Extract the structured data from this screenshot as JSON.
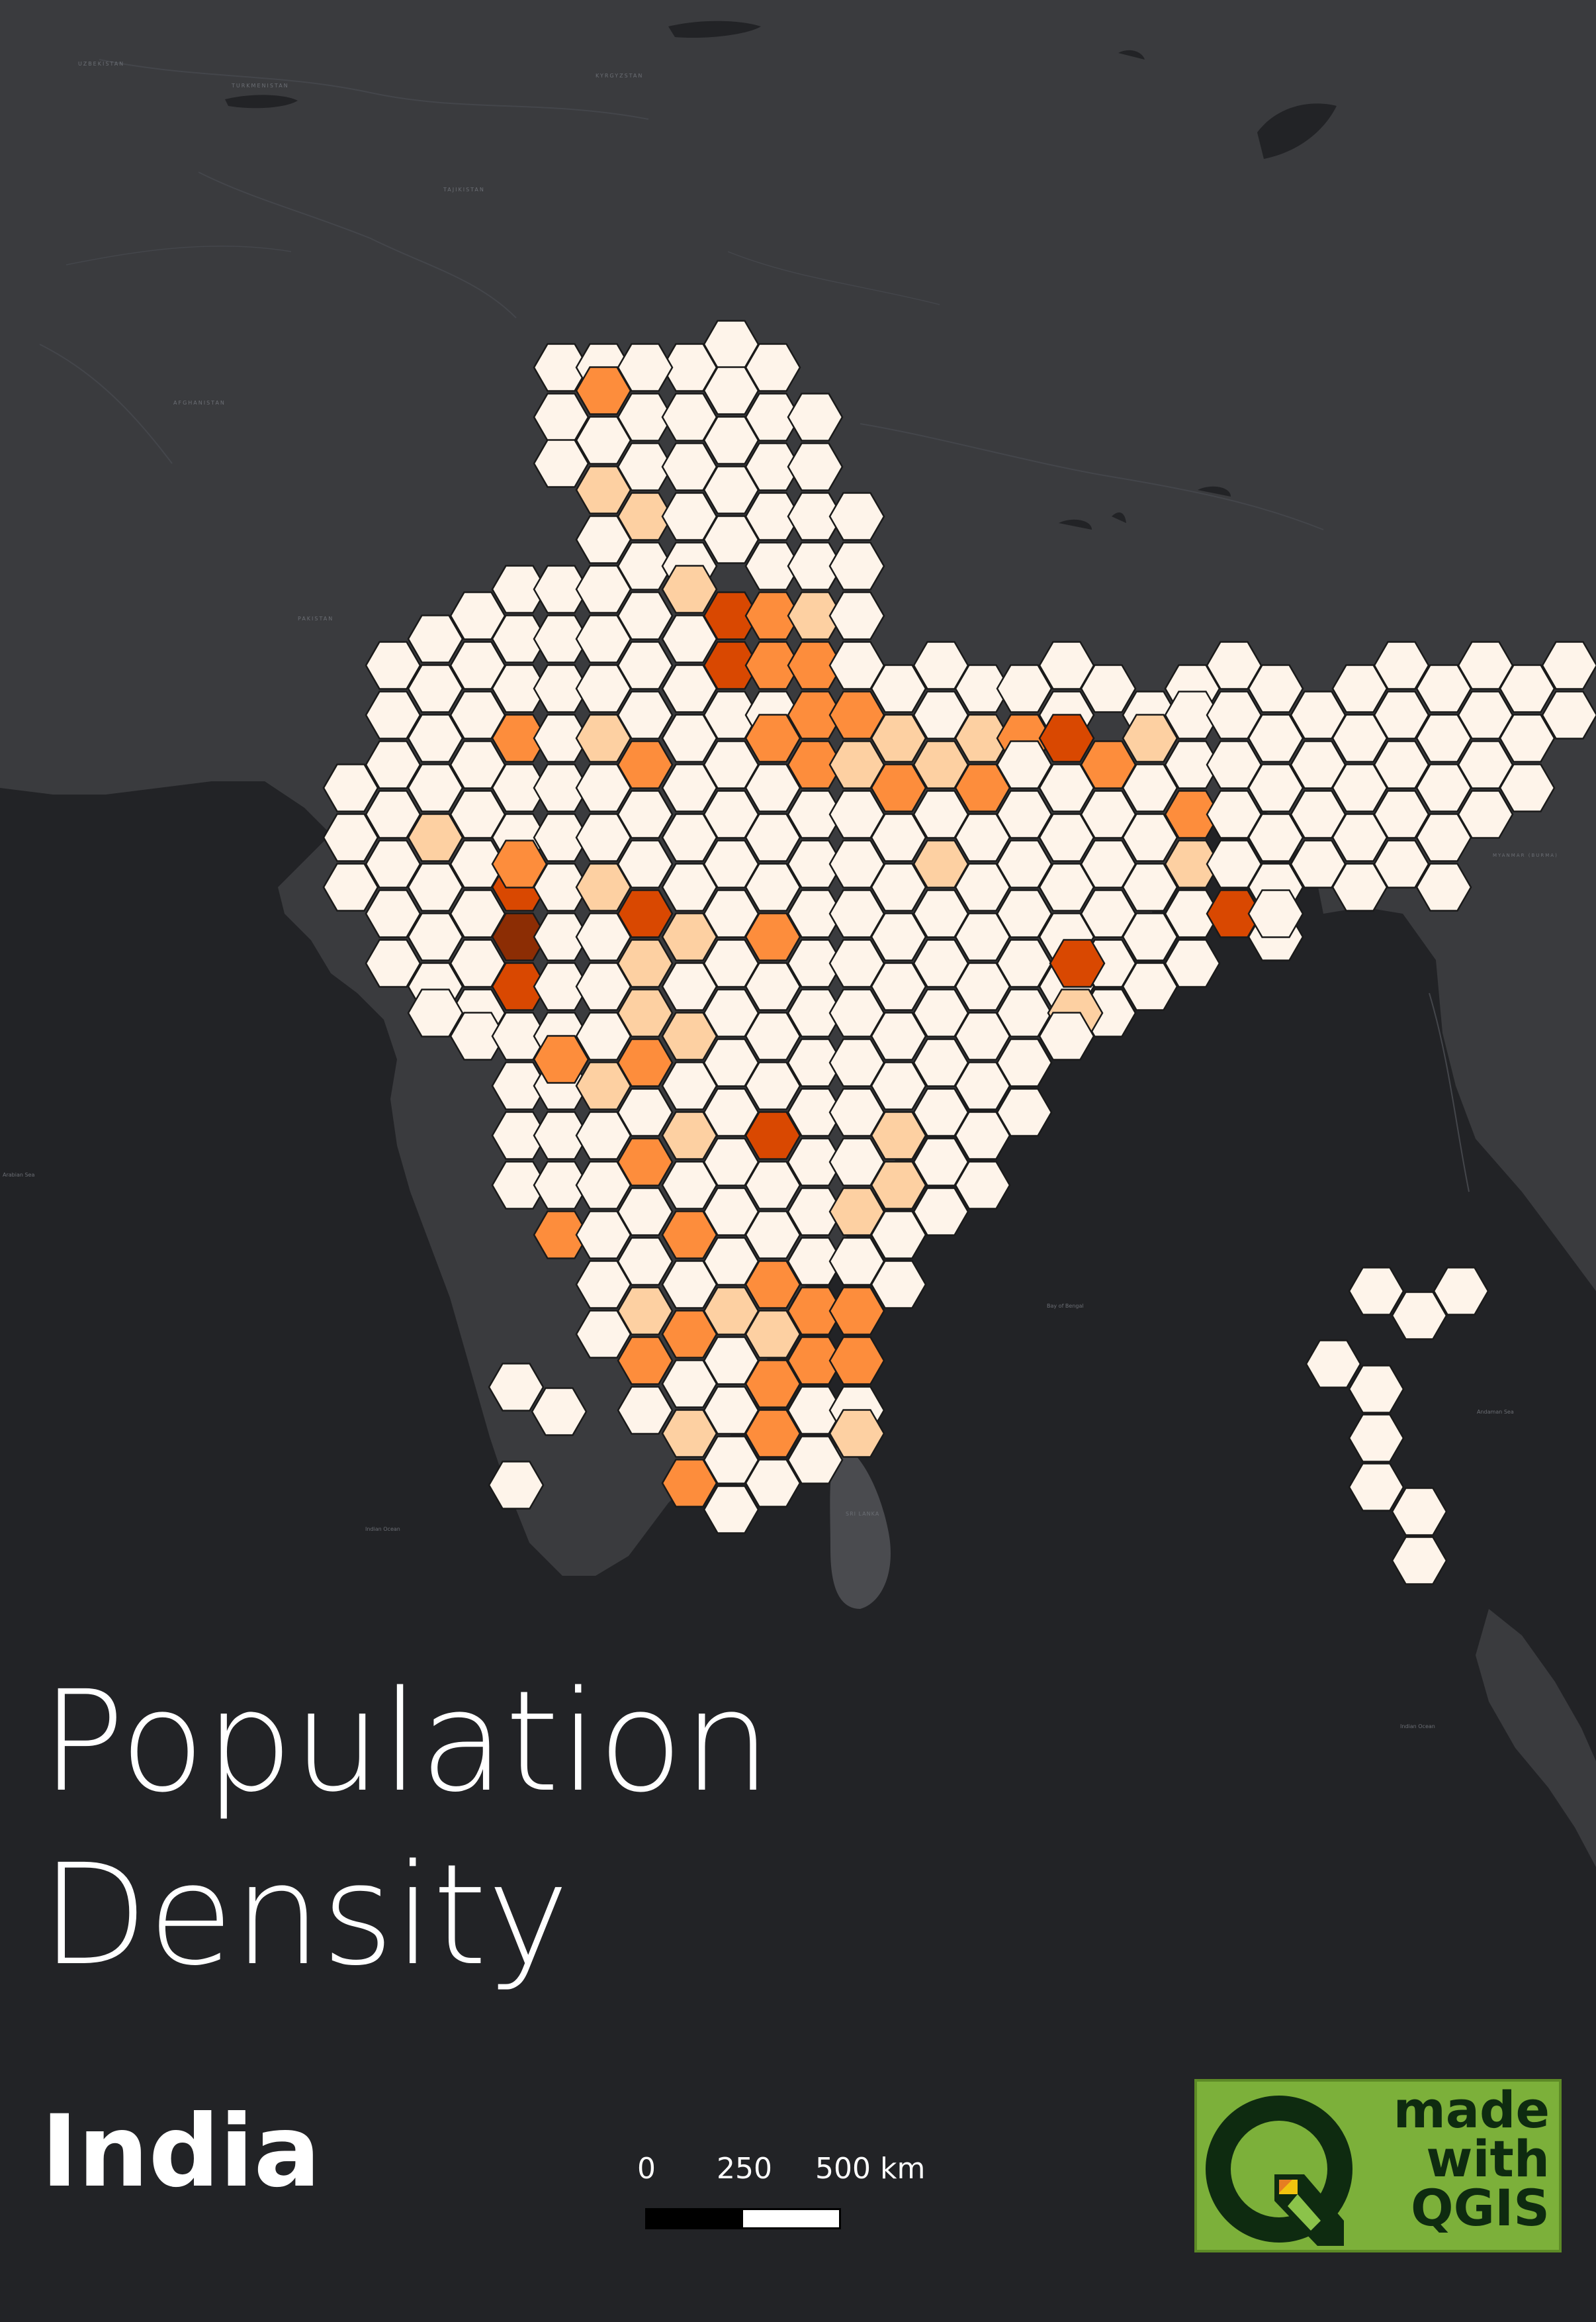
{
  "map": {
    "title_lines": [
      "Population",
      "Density"
    ],
    "subtitle": "India",
    "scale": {
      "labels": [
        "0",
        "250",
        "500 km"
      ]
    },
    "badge": {
      "lines": [
        "made",
        "with",
        "QGIS"
      ],
      "icon": "qgis-q-logo-icon"
    },
    "place_labels": {
      "uzbekistan": "UZBEKISTAN",
      "turkmenistan": "TURKMENISTAN",
      "kyrgyzstan": "KYRGYZSTAN",
      "tajikistan": "TAJIKISTAN",
      "afghanistan": "AFGHANISTAN",
      "pakistan": "PAKISTAN",
      "myanmar": "MYANMAR (BURMA)",
      "bay_of_bengal": "Bay of Bengal",
      "indian_ocean": "Indian Ocean",
      "indian_ocean_2": "Indian Ocean",
      "sri_lanka": "SRI LANKA",
      "arabian_sea": "Arabian Sea",
      "andaman_sea": "Andaman Sea"
    },
    "palette": {
      "land": "#3a3b3e",
      "water": "#222326",
      "hex_outline": "#1a1a1a",
      "class_1": "#fef4ea",
      "class_2": "#fdd0a2",
      "class_3": "#fd8d3c",
      "class_4": "#d94801",
      "class_5": "#8c2d04"
    },
    "hex_rows": [
      "............##...................",
      "...........#######...............",
      "...........######................",
      "...........####.##...............",
      "...........######................",
      "...........######................",
      ".....#######..........##.........",
      "....#######......................",
      "....##########...................",
      "...###############.########.###..",
      "...#################.############",
      "...##################.#########..",
      "..#######################.##.#...",
      "..#######################.#######",
      ".#########################.####..",
      ".#######################..#......",
      ".#######################.........",
      "..#####################..........",
      "..#####################..........",
      "...############..................",
      "...####.........................."
    ],
    "hex_grid": [
      "...........ABCD..................",
      "..........ABBBCD.................",
      "..........AACBCDE................",
      "..........AAAAACE................",
      "..........ABBAACE................",
      ".........AAABBBCE................",
      "........AAAAAAAAE................",
      ".......AAAAAAAAAAA...............",
      "........AAAAAAAAAA...............",
      "........AAAAAAAAAA..............."
    ],
    "density_by_row": [
      [
        "c1",
        "c1",
        "c1",
        "c1"
      ],
      [
        "c1",
        "c3",
        "c1",
        "c1",
        "c1",
        "c1"
      ],
      [
        "c1",
        "c1",
        "c1",
        "c1",
        "c1",
        "c1",
        "c1"
      ],
      [
        "c2",
        "c1",
        "c1",
        "c1",
        "c1",
        "c1"
      ],
      [
        "c1",
        "c2",
        "c1",
        "c1",
        "c1",
        "c1",
        "c1"
      ],
      [
        "c1",
        "c1",
        "c1",
        "c1",
        "c1",
        "c1",
        "c1"
      ],
      [
        "c1",
        "c1",
        "c1",
        "c1",
        "c2",
        "c4",
        "c2",
        "c1"
      ],
      [
        "c1",
        "c1",
        "c1",
        "c1",
        "c1",
        "c1",
        "c4",
        "c3",
        "c2",
        "c1",
        "c1",
        "c1",
        "c1",
        "c1",
        "c1",
        "c1",
        "c1",
        "c1",
        "c1",
        "c1",
        "c1",
        "c1",
        "c1",
        "c1"
      ],
      [
        "c1",
        "c1",
        "c1",
        "c1",
        "c1",
        "c1",
        "c1",
        "c1",
        "c1",
        "c3",
        "c3",
        "c3",
        "c1",
        "c1",
        "c1",
        "c1",
        "c1",
        "c1",
        "c1",
        "c1",
        "c1",
        "c1",
        "c1",
        "c1",
        "c1",
        "c1"
      ],
      [
        "c1",
        "c1",
        "c1",
        "c1",
        "c1",
        "c1",
        "c3",
        "c1",
        "c1",
        "c1",
        "c1",
        "c3",
        "c3",
        "c2",
        "c1",
        "c2",
        "c1",
        "c1",
        "c1",
        "c1",
        "c1",
        "c1",
        "c1",
        "c1",
        "c1",
        "c1",
        "c1",
        "c1",
        "c1",
        "c1",
        "c1",
        "c1",
        "c1"
      ],
      [
        "c1",
        "c1",
        "c1",
        "c3",
        "c1",
        "c2",
        "c1",
        "c1",
        "c1",
        "c1",
        "c3",
        "c3",
        "c2",
        "c3",
        "c2",
        "c1",
        "c3",
        "c1",
        "c1",
        "c1",
        "c1",
        "c1",
        "c1",
        "c1",
        "c1",
        "c1",
        "c1",
        "c1",
        "c1",
        "c1",
        "c1",
        "c1",
        "c1"
      ],
      [
        "c1",
        "c1",
        "c1",
        "c1",
        "c1",
        "c1",
        "c1",
        "c1",
        "c1",
        "c1",
        "c1",
        "c1",
        "c1",
        "c3",
        "c1",
        "c2",
        "c3",
        "c4",
        "c1",
        "c1",
        "c1",
        "c1",
        "c1",
        "c1",
        "c1",
        "c1",
        "c1",
        "c1",
        "c1",
        "c1",
        "c1",
        "c1"
      ]
    ],
    "hex_dens": {
      "r0": "............11...................",
      "r1": "...........1311.1...............",
      "r2": "...........111111................",
      "r3": "...........2111.11...............",
      "r4": "...........121111................",
      "r5": "...........111111................",
      "r6": ".....1111412..........11.........",
      "r7": "....1111443......................",
      "r8": "....1111113341...................",
      "r9": "...11133121321222223...1111.111..",
      "r10": "...111111111113322121341111111111",
      "r11": "...1111111111112222321.111111111..",
      "r12": "..121131111111111131113.11.1...",
      "r13": "..1113141111111111111111.1111111",
      "r14": ".1111521211111111111111131.1111..",
      "r15": ".11114122111111111111411..1......",
      "r16": ".1111111111111111111112.........",
      "r17": "..11141313111111111111..........",
      "r18": "..111113123111111111111.........",
      "r19": "...111111114111..................",
      "r20": "...1111.........................."
    }
  }
}
